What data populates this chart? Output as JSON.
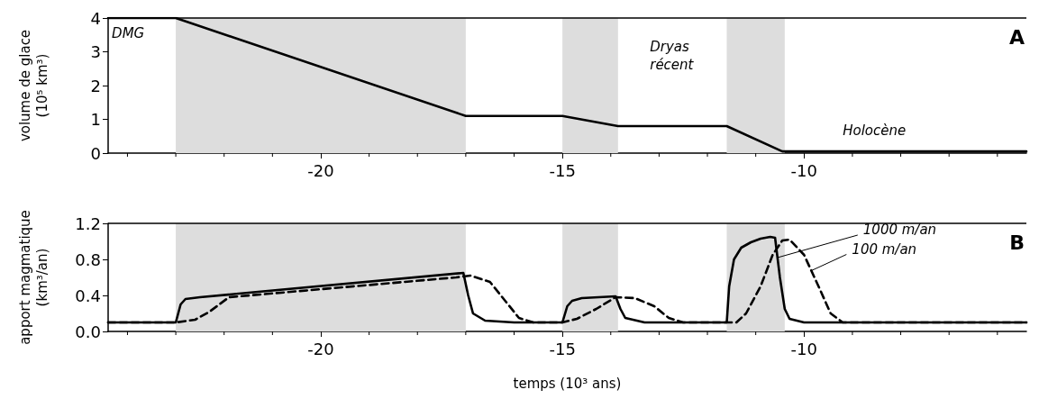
{
  "chart_data": [
    {
      "type": "line",
      "ylabel": "volume de glace\n(10⁵ km³)",
      "xlim": [
        -24.4,
        -5.4
      ],
      "ylim": [
        0,
        4
      ],
      "xticks": [
        {
          "value": -24,
          "label": null
        },
        {
          "value": -23,
          "label": null
        },
        {
          "value": -22,
          "label": null
        },
        {
          "value": -21,
          "label": null
        },
        -20,
        {
          "value": -19,
          "label": null
        },
        {
          "value": -18,
          "label": null
        },
        {
          "value": -17,
          "label": null
        },
        {
          "value": -16,
          "label": null
        },
        -15,
        {
          "value": -14,
          "label": null
        },
        {
          "value": -13,
          "label": null
        },
        {
          "value": -12,
          "label": null
        },
        {
          "value": -11,
          "label": null
        },
        -10,
        {
          "value": -9,
          "label": null
        },
        {
          "value": -8,
          "label": null
        },
        {
          "value": -7,
          "label": null
        },
        {
          "value": -6,
          "label": null
        }
      ],
      "yticks": [
        0,
        1,
        2,
        3,
        4
      ],
      "grid": false,
      "legend": false,
      "marker": "none",
      "series": [
        {
          "color": "#000000",
          "line_style": "solid",
          "x": [
            -24.4,
            -23,
            -17,
            -15,
            -13.85,
            -11.6,
            -10.45,
            -5.4
          ],
          "values": [
            4,
            4,
            1.1,
            1.1,
            0.8,
            0.8,
            0.05,
            0.05
          ]
        }
      ],
      "bands": [
        {
          "axis": "x",
          "from": -23,
          "to": -17,
          "color": "#dddddd"
        },
        {
          "axis": "x",
          "from": -15,
          "to": -13.85,
          "color": "#dddddd"
        },
        {
          "axis": "x",
          "from": -11.6,
          "to": -10.4,
          "color": "#dddddd"
        }
      ],
      "annotations": [
        "DMG",
        "Dryas\nrécent",
        "Holocène",
        "A"
      ]
    },
    {
      "type": "line",
      "ylabel": "apport magmatique\n(km³/an)",
      "xlabel": "temps (10³ ans)",
      "xlim": [
        -24.4,
        -5.4
      ],
      "ylim": [
        0,
        1.2
      ],
      "xticks": [
        {
          "value": -24,
          "label": null
        },
        {
          "value": -23,
          "label": null
        },
        {
          "value": -22,
          "label": null
        },
        {
          "value": -21,
          "label": null
        },
        -20,
        {
          "value": -19,
          "label": null
        },
        {
          "value": -18,
          "label": null
        },
        {
          "value": -17,
          "label": null
        },
        {
          "value": -16,
          "label": null
        },
        -15,
        {
          "value": -14,
          "label": null
        },
        {
          "value": -13,
          "label": null
        },
        {
          "value": -12,
          "label": null
        },
        {
          "value": -11,
          "label": null
        },
        -10,
        {
          "value": -9,
          "label": null
        },
        {
          "value": -8,
          "label": null
        },
        {
          "value": -7,
          "label": null
        },
        {
          "value": -6,
          "label": null
        }
      ],
      "yticks": [
        {
          "value": 0,
          "label": "0.0"
        },
        0.4,
        0.8,
        1.2
      ],
      "grid": false,
      "legend": false,
      "marker": "none",
      "series": [
        {
          "name": "1000 m/an",
          "color": "#000000",
          "line_style": "solid",
          "x": [
            -24.4,
            -23,
            -22.9,
            -22.8,
            -22.5,
            -17.05,
            -16.95,
            -16.85,
            -16.6,
            -16,
            -15,
            -14.9,
            -14.8,
            -14.6,
            -13.9,
            -13.8,
            -13.7,
            -13.3,
            -11.6,
            -11.55,
            -11.45,
            -11.3,
            -11.1,
            -10.9,
            -10.7,
            -10.6,
            -10.5,
            -10.4,
            -10.3,
            -10,
            -5.4
          ],
          "values": [
            0.1,
            0.1,
            0.3,
            0.36,
            0.38,
            0.65,
            0.4,
            0.2,
            0.12,
            0.1,
            0.1,
            0.28,
            0.34,
            0.37,
            0.39,
            0.25,
            0.15,
            0.1,
            0.1,
            0.5,
            0.8,
            0.93,
            0.99,
            1.03,
            1.05,
            1.04,
            0.6,
            0.25,
            0.14,
            0.1,
            0.1
          ]
        },
        {
          "name": "100 m/an",
          "color": "#000000",
          "line_style": "dashed",
          "x": [
            -24.4,
            -23,
            -22.6,
            -22.3,
            -21.9,
            -17.2,
            -16.9,
            -16.5,
            -16.2,
            -15.9,
            -15.6,
            -15,
            -14.7,
            -14.3,
            -13.9,
            -13.5,
            -13.1,
            -12.8,
            -12.5,
            -11.4,
            -11.2,
            -10.9,
            -10.65,
            -10.45,
            -10.3,
            -10,
            -9.7,
            -9.45,
            -9.2,
            -5.4
          ],
          "values": [
            0.1,
            0.1,
            0.13,
            0.22,
            0.38,
            0.6,
            0.62,
            0.55,
            0.35,
            0.15,
            0.1,
            0.1,
            0.14,
            0.25,
            0.38,
            0.37,
            0.28,
            0.15,
            0.1,
            0.1,
            0.2,
            0.5,
            0.85,
            1.01,
            1.02,
            0.85,
            0.5,
            0.2,
            0.1,
            0.1
          ]
        }
      ],
      "bands": [
        {
          "axis": "x",
          "from": -23,
          "to": -17,
          "color": "#dddddd"
        },
        {
          "axis": "x",
          "from": -15,
          "to": -13.85,
          "color": "#dddddd"
        },
        {
          "axis": "x",
          "from": -11.6,
          "to": -10.4,
          "color": "#dddddd"
        }
      ],
      "annotations": [
        "B"
      ]
    }
  ]
}
